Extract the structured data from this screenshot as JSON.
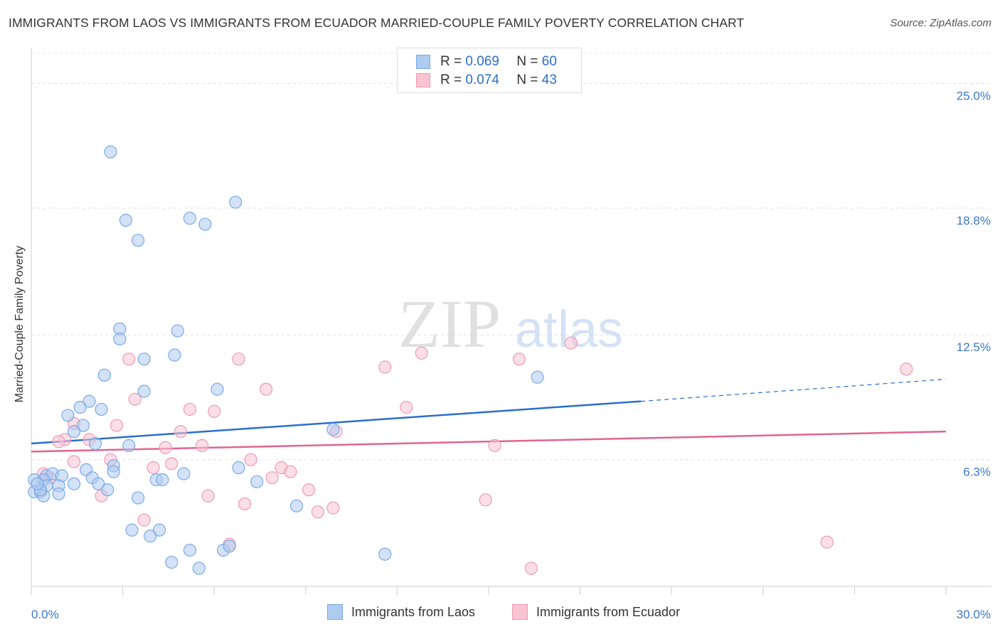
{
  "header": {
    "title": "IMMIGRANTS FROM LAOS VS IMMIGRANTS FROM ECUADOR MARRIED-COUPLE FAMILY POVERTY CORRELATION CHART",
    "source": "Source: ZipAtlas.com"
  },
  "legend": {
    "r_label": "R =",
    "n_label": "N =",
    "rows": [
      {
        "r": "0.069",
        "n": "60"
      },
      {
        "r": "0.074",
        "n": "43"
      }
    ]
  },
  "watermark": {
    "zip": "ZIP",
    "atlas": "atlas"
  },
  "colors": {
    "laos_fill": "#aecbf0",
    "laos_stroke": "#7aaae6",
    "laos_line": "#2a6fcc",
    "ecuador_fill": "#f8c3d3",
    "ecuador_stroke": "#ee9ab4",
    "ecuador_line": "#e0668f",
    "axis_label": "#3a78c8"
  },
  "chart_data": {
    "type": "scatter",
    "title": "IMMIGRANTS FROM LAOS VS IMMIGRANTS FROM ECUADOR MARRIED-COUPLE FAMILY POVERTY CORRELATION CHART",
    "xlabel": "",
    "ylabel": "Married-Couple Family Poverty",
    "xlim": [
      0,
      30
    ],
    "ylim": [
      0,
      26.5
    ],
    "x_tick_labels": [
      "0.0%",
      "30.0%"
    ],
    "y_ticks": [
      {
        "value": 6.3,
        "label": "6.3%"
      },
      {
        "value": 12.5,
        "label": "12.5%"
      },
      {
        "value": 18.8,
        "label": "18.8%"
      },
      {
        "value": 25.0,
        "label": "25.0%"
      }
    ],
    "grid": "horizontal dashed",
    "legend_position": "top-center",
    "series": [
      {
        "name": "Immigrants from Laos",
        "r": 0.069,
        "n": 60,
        "trend": {
          "x0": 0,
          "y0": 7.1,
          "x1": 20,
          "y1": 9.2,
          "dash_to_x": 30,
          "dash_to_y": 10.3
        },
        "points": [
          [
            2.6,
            21.6
          ],
          [
            6.7,
            19.1
          ],
          [
            3.1,
            18.2
          ],
          [
            5.2,
            18.3
          ],
          [
            5.7,
            18.0
          ],
          [
            3.5,
            17.2
          ],
          [
            4.8,
            12.7
          ],
          [
            2.9,
            12.8
          ],
          [
            2.9,
            12.3
          ],
          [
            3.7,
            11.3
          ],
          [
            4.7,
            11.5
          ],
          [
            2.4,
            10.5
          ],
          [
            16.6,
            10.4
          ],
          [
            3.7,
            9.7
          ],
          [
            6.1,
            9.8
          ],
          [
            1.9,
            9.2
          ],
          [
            2.3,
            8.8
          ],
          [
            1.2,
            8.5
          ],
          [
            1.6,
            8.9
          ],
          [
            1.7,
            8.0
          ],
          [
            1.4,
            7.7
          ],
          [
            9.9,
            7.8
          ],
          [
            2.1,
            7.1
          ],
          [
            3.2,
            7.0
          ],
          [
            2.7,
            6.0
          ],
          [
            1.8,
            5.8
          ],
          [
            2.7,
            5.7
          ],
          [
            5.0,
            5.6
          ],
          [
            6.8,
            5.9
          ],
          [
            0.5,
            5.5
          ],
          [
            0.7,
            5.6
          ],
          [
            1.0,
            5.5
          ],
          [
            2.0,
            5.4
          ],
          [
            4.1,
            5.3
          ],
          [
            4.3,
            5.3
          ],
          [
            7.4,
            5.2
          ],
          [
            0.4,
            5.3
          ],
          [
            1.4,
            5.1
          ],
          [
            2.2,
            5.1
          ],
          [
            0.9,
            5.0
          ],
          [
            0.5,
            5.0
          ],
          [
            2.5,
            4.8
          ],
          [
            0.1,
            4.7
          ],
          [
            0.3,
            4.7
          ],
          [
            0.9,
            4.6
          ],
          [
            0.4,
            4.5
          ],
          [
            3.5,
            4.4
          ],
          [
            8.7,
            4.0
          ],
          [
            3.3,
            2.8
          ],
          [
            4.2,
            2.8
          ],
          [
            3.9,
            2.5
          ],
          [
            5.2,
            1.8
          ],
          [
            6.3,
            1.8
          ],
          [
            6.5,
            2.0
          ],
          [
            11.6,
            1.6
          ],
          [
            4.6,
            1.2
          ],
          [
            5.5,
            0.9
          ],
          [
            0.1,
            5.3
          ],
          [
            0.3,
            4.8
          ],
          [
            0.2,
            5.1
          ]
        ]
      },
      {
        "name": "Immigrants from Ecuador",
        "r": 0.074,
        "n": 43,
        "trend": {
          "x0": 0,
          "y0": 6.7,
          "x1": 30,
          "y1": 7.7
        },
        "points": [
          [
            17.7,
            12.1
          ],
          [
            12.8,
            11.6
          ],
          [
            3.2,
            11.3
          ],
          [
            6.8,
            11.3
          ],
          [
            16.0,
            11.3
          ],
          [
            11.6,
            10.9
          ],
          [
            28.7,
            10.8
          ],
          [
            7.7,
            9.8
          ],
          [
            3.4,
            9.3
          ],
          [
            12.3,
            8.9
          ],
          [
            5.2,
            8.8
          ],
          [
            6.0,
            8.7
          ],
          [
            2.8,
            8.0
          ],
          [
            1.4,
            8.1
          ],
          [
            4.9,
            7.7
          ],
          [
            10.0,
            7.7
          ],
          [
            1.1,
            7.3
          ],
          [
            1.9,
            7.3
          ],
          [
            0.9,
            7.2
          ],
          [
            4.4,
            6.9
          ],
          [
            5.6,
            7.0
          ],
          [
            15.2,
            7.0
          ],
          [
            2.6,
            6.3
          ],
          [
            7.2,
            6.3
          ],
          [
            1.4,
            6.2
          ],
          [
            4.6,
            6.1
          ],
          [
            4.0,
            5.9
          ],
          [
            8.2,
            5.9
          ],
          [
            0.4,
            5.6
          ],
          [
            8.5,
            5.7
          ],
          [
            0.6,
            5.4
          ],
          [
            7.9,
            5.4
          ],
          [
            9.1,
            4.8
          ],
          [
            2.3,
            4.5
          ],
          [
            5.8,
            4.5
          ],
          [
            14.9,
            4.3
          ],
          [
            7.0,
            4.1
          ],
          [
            9.9,
            3.9
          ],
          [
            9.4,
            3.7
          ],
          [
            3.7,
            3.3
          ],
          [
            6.5,
            2.1
          ],
          [
            26.1,
            2.2
          ],
          [
            16.4,
            0.9
          ]
        ]
      }
    ]
  },
  "bottom_legend": [
    "Immigrants from Laos",
    "Immigrants from Ecuador"
  ]
}
